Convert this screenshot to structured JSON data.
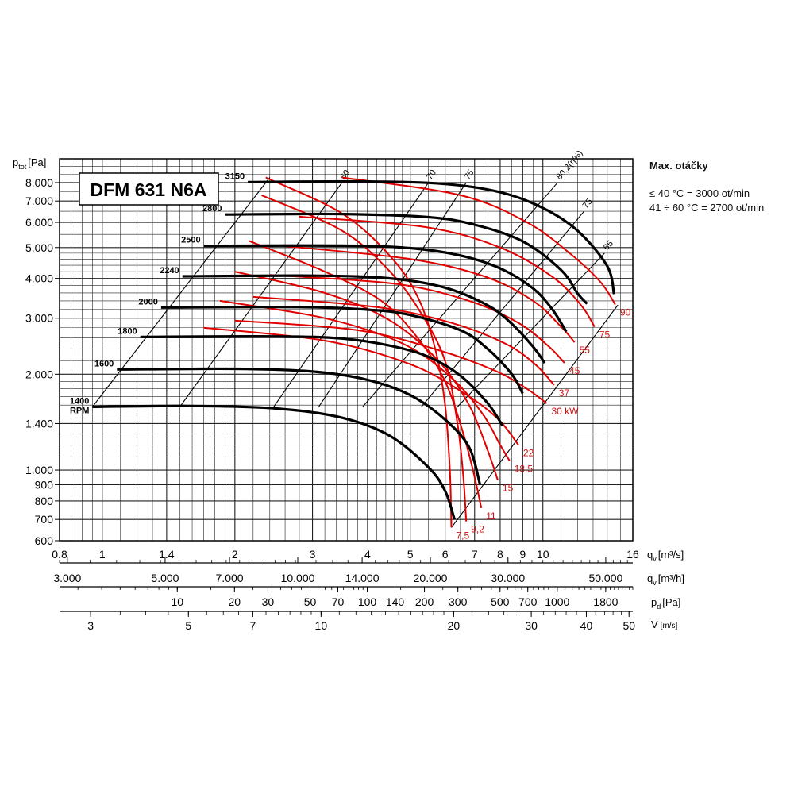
{
  "chart_data": {
    "type": "line",
    "title": "DFM 631 N6A",
    "y_axis": {
      "label": "p",
      "label_sub": "tot",
      "label_unit": "[Pa]",
      "scale": "log",
      "range": [
        600,
        9500
      ],
      "ticks": [
        8000,
        7000,
        6000,
        5000,
        4000,
        3000,
        2000,
        1400,
        1000,
        900,
        800,
        700,
        600
      ],
      "tick_labels": [
        "8.000",
        "7.000",
        "6.000",
        "5.000",
        "4.000",
        "3.000",
        "2.000",
        "1.400",
        "1.000",
        "900",
        "800",
        "700",
        "600"
      ]
    },
    "x_axis": {
      "label": "q",
      "label_sub": "v",
      "label_unit": "[m³/s]",
      "scale": "log",
      "range": [
        0.8,
        16
      ],
      "ticks": [
        0.8,
        1,
        1.4,
        2,
        3,
        4,
        5,
        6,
        7,
        8,
        9,
        10,
        16
      ],
      "tick_labels": [
        "0.8",
        "1",
        "1.4",
        "2",
        "3",
        "4",
        "5",
        "6",
        "7",
        "8",
        "9",
        "10",
        "16"
      ]
    },
    "extra_axes": [
      {
        "name": "qv-m3h",
        "label": "q",
        "label_sub": "v",
        "label_unit": "[m³/h]",
        "scale": "log",
        "range": [
          2880,
          57600
        ],
        "ticks": [
          3000,
          5000,
          7000,
          10000,
          14000,
          20000,
          30000,
          50000
        ],
        "tick_labels": [
          "3.000",
          "5.000",
          "7.000",
          "10.000",
          "14.000",
          "20.000",
          "30.000",
          "50.000"
        ]
      },
      {
        "name": "pd",
        "label": "p",
        "label_sub": "d",
        "label_unit": "[Pa]",
        "scale": "log",
        "range": [
          2.4,
          2500
        ],
        "ticks": [
          10,
          20,
          30,
          50,
          70,
          100,
          140,
          200,
          300,
          500,
          700,
          1000,
          1800
        ],
        "tick_labels": [
          "10",
          "20",
          "30",
          "50",
          "70",
          "100",
          "140",
          "200",
          "300",
          "500",
          "700",
          "1000",
          "1800"
        ]
      },
      {
        "name": "velocity",
        "label": "V",
        "label_unit": "[m/s]",
        "scale": "log",
        "range": [
          2.55,
          51
        ],
        "ticks": [
          3,
          5,
          7,
          10,
          20,
          30,
          40,
          50
        ],
        "tick_labels": [
          "3",
          "5",
          "7",
          "10",
          "20",
          "30",
          "40",
          "50"
        ]
      }
    ],
    "speed_curves": [
      {
        "rpm_label": "1400\nRPM",
        "points": [
          [
            0.95,
            1580
          ],
          [
            1.6,
            1590
          ],
          [
            2.5,
            1560
          ],
          [
            3.5,
            1460
          ],
          [
            4.5,
            1280
          ],
          [
            5.5,
            1020
          ],
          [
            6.0,
            860
          ],
          [
            6.3,
            700
          ]
        ]
      },
      {
        "rpm_label": "1600",
        "points": [
          [
            1.08,
            2070
          ],
          [
            2.0,
            2080
          ],
          [
            3.0,
            2040
          ],
          [
            4.0,
            1920
          ],
          [
            5.0,
            1720
          ],
          [
            6.0,
            1440
          ],
          [
            6.8,
            1180
          ],
          [
            7.2,
            900
          ]
        ]
      },
      {
        "rpm_label": "1800",
        "points": [
          [
            1.22,
            2620
          ],
          [
            2.5,
            2630
          ],
          [
            3.5,
            2590
          ],
          [
            4.5,
            2460
          ],
          [
            5.5,
            2270
          ],
          [
            6.5,
            1980
          ],
          [
            7.5,
            1620
          ],
          [
            8.1,
            1380
          ]
        ]
      },
      {
        "rpm_label": "2000",
        "points": [
          [
            1.36,
            3240
          ],
          [
            2.8,
            3250
          ],
          [
            4.0,
            3190
          ],
          [
            5.0,
            3070
          ],
          [
            6.5,
            2750
          ],
          [
            7.5,
            2400
          ],
          [
            8.5,
            2000
          ],
          [
            9.0,
            1740
          ]
        ]
      },
      {
        "rpm_label": "2240",
        "points": [
          [
            1.52,
            4060
          ],
          [
            3.0,
            4080
          ],
          [
            4.5,
            4000
          ],
          [
            6.0,
            3740
          ],
          [
            7.5,
            3290
          ],
          [
            8.5,
            2880
          ],
          [
            9.5,
            2440
          ],
          [
            10.1,
            2170
          ]
        ]
      },
      {
        "rpm_label": "2500",
        "points": [
          [
            1.7,
            5060
          ],
          [
            3.5,
            5070
          ],
          [
            5.0,
            4980
          ],
          [
            6.5,
            4720
          ],
          [
            8.0,
            4300
          ],
          [
            9.5,
            3720
          ],
          [
            10.5,
            3200
          ],
          [
            11.3,
            2720
          ]
        ]
      },
      {
        "rpm_label": "2800",
        "points": [
          [
            1.9,
            6350
          ],
          [
            3.5,
            6370
          ],
          [
            5.5,
            6230
          ],
          [
            7.0,
            5900
          ],
          [
            9.0,
            5230
          ],
          [
            11.0,
            4250
          ],
          [
            12.0,
            3580
          ],
          [
            12.6,
            3330
          ]
        ]
      },
      {
        "rpm_label": "3150",
        "points": [
          [
            2.14,
            8030
          ],
          [
            4.0,
            8060
          ],
          [
            6.0,
            7920
          ],
          [
            8.0,
            7460
          ],
          [
            10.0,
            6660
          ],
          [
            12.0,
            5640
          ],
          [
            14.0,
            4370
          ],
          [
            14.5,
            3570
          ]
        ]
      }
    ],
    "power_curves": [
      {
        "label": "7,5",
        "points": [
          [
            2.35,
            8300
          ],
          [
            3.5,
            6400
          ],
          [
            4.5,
            4700
          ],
          [
            5.2,
            3500
          ],
          [
            5.7,
            2400
          ],
          [
            6.0,
            1600
          ],
          [
            6.15,
            1000
          ],
          [
            6.2,
            660
          ]
        ]
      },
      {
        "label": "9,2",
        "points": [
          [
            2.3,
            7300
          ],
          [
            3.5,
            5650
          ],
          [
            4.5,
            4200
          ],
          [
            5.3,
            3100
          ],
          [
            6.0,
            2200
          ],
          [
            6.4,
            1400
          ],
          [
            6.6,
            950
          ],
          [
            6.7,
            690
          ]
        ]
      },
      {
        "label": "11",
        "points": [
          [
            2.15,
            5250
          ],
          [
            3.2,
            4200
          ],
          [
            4.3,
            3400
          ],
          [
            5.2,
            2600
          ],
          [
            6.0,
            1900
          ],
          [
            6.6,
            1300
          ],
          [
            7.0,
            950
          ],
          [
            7.25,
            760
          ]
        ]
      },
      {
        "label": "15",
        "points": [
          [
            2.0,
            4200
          ],
          [
            3.2,
            3600
          ],
          [
            4.5,
            2950
          ],
          [
            5.8,
            2200
          ],
          [
            6.8,
            1600
          ],
          [
            7.5,
            1150
          ],
          [
            7.9,
            930
          ]
        ]
      },
      {
        "label": "18,5",
        "points": [
          [
            1.85,
            3400
          ],
          [
            3.2,
            3000
          ],
          [
            4.8,
            2500
          ],
          [
            6.2,
            1950
          ],
          [
            7.3,
            1500
          ],
          [
            8.0,
            1200
          ],
          [
            8.4,
            1070
          ]
        ]
      },
      {
        "label": "22",
        "points": [
          [
            1.7,
            2800
          ],
          [
            3.2,
            2550
          ],
          [
            5.0,
            2150
          ],
          [
            6.6,
            1750
          ],
          [
            7.9,
            1450
          ],
          [
            8.8,
            1200
          ]
        ]
      },
      {
        "label": "30 kW",
        "points": [
          [
            2.0,
            2950
          ],
          [
            3.8,
            2750
          ],
          [
            5.8,
            2380
          ],
          [
            7.8,
            2050
          ],
          [
            9.2,
            1800
          ],
          [
            10.2,
            1620
          ]
        ]
      },
      {
        "label": "37",
        "points": [
          [
            2.2,
            3500
          ],
          [
            4.2,
            3250
          ],
          [
            6.2,
            2900
          ],
          [
            8.2,
            2500
          ],
          [
            9.6,
            2150
          ],
          [
            10.6,
            1850
          ]
        ]
      },
      {
        "label": "45",
        "points": [
          [
            2.4,
            4100
          ],
          [
            4.6,
            3850
          ],
          [
            6.8,
            3400
          ],
          [
            8.8,
            2900
          ],
          [
            10.3,
            2450
          ],
          [
            11.2,
            2170
          ]
        ]
      },
      {
        "label": "55",
        "points": [
          [
            2.6,
            5050
          ],
          [
            5.0,
            4600
          ],
          [
            7.4,
            4050
          ],
          [
            9.5,
            3400
          ],
          [
            11.0,
            2820
          ],
          [
            11.8,
            2520
          ]
        ]
      },
      {
        "label": "75",
        "points": [
          [
            2.8,
            6250
          ],
          [
            5.4,
            5800
          ],
          [
            8.0,
            5000
          ],
          [
            10.5,
            4050
          ],
          [
            12.2,
            3300
          ],
          [
            13.1,
            2820
          ]
        ]
      },
      {
        "label": "90",
        "points": [
          [
            3.5,
            8300
          ],
          [
            6.5,
            7300
          ],
          [
            9.2,
            6000
          ],
          [
            11.5,
            4800
          ],
          [
            13.5,
            3900
          ],
          [
            14.6,
            3310
          ]
        ]
      }
    ],
    "efficiency_lines": [
      {
        "label": "60",
        "points": [
          [
            1.5,
            1580
          ],
          [
            3.5,
            8000
          ]
        ]
      },
      {
        "label": "70",
        "points": [
          [
            2.45,
            1580
          ],
          [
            5.5,
            8000
          ]
        ]
      },
      {
        "label": "75",
        "points": [
          [
            3.1,
            1580
          ],
          [
            6.7,
            8000
          ]
        ]
      },
      {
        "label": "80,2(η%)",
        "points": [
          [
            3.9,
            1580
          ],
          [
            10.8,
            8000
          ]
        ]
      },
      {
        "label": "75",
        "points": [
          [
            5.3,
            1580
          ],
          [
            12.4,
            6500
          ]
        ]
      },
      {
        "label": "65",
        "points": [
          [
            6.4,
            1580
          ],
          [
            13.8,
            4800
          ]
        ]
      }
    ],
    "legend_box": "none",
    "grid": true,
    "notes": {
      "title": "Max. otáčky",
      "line1": "≤ 40 °C = 3000 ot/min",
      "line2": "41 ÷ 60 °C = 2700 ot/min"
    },
    "colors": {
      "speed_curve": "#000000",
      "power_curve": "#e00000",
      "efficiency_line": "#000000",
      "grid": "#222222",
      "power_label": "#cc1111"
    }
  }
}
